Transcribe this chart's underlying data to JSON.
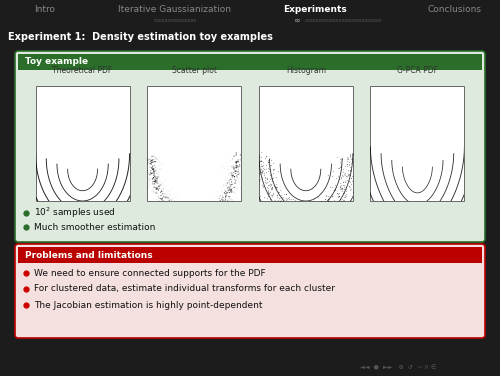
{
  "bg_color": "#1c1c1c",
  "header_bg": "#0a0a0a",
  "nav_items": [
    "Intro",
    "Iterative Gaussianization",
    "Experiments",
    "Conclusions"
  ],
  "nav_active": 2,
  "section_bar_color": "#3030a0",
  "section_title": "Experiment 1:  Density estimation toy examples",
  "section_title_color": "#ffffff",
  "toy_box_bg": "#deeade",
  "toy_box_border": "#2a6e2a",
  "toy_title": "Toy example",
  "toy_title_bg": "#2a6e2a",
  "toy_title_color": "#ffffff",
  "plot_titles": [
    "Theoretical PDF",
    "Scatter plot",
    "Histogram",
    "G-PCA PDF"
  ],
  "bullet_color_toy": "#2a6e2a",
  "toy_bullets": [
    "$10^2$ samples used",
    "Much smoother estimation"
  ],
  "prob_box_bg": "#f5e0e0",
  "prob_box_border": "#bb0000",
  "prob_title": "Problems and limitations",
  "prob_title_bg": "#bb0000",
  "prob_title_color": "#ffffff",
  "bullet_color_prob": "#cc0000",
  "prob_bullets": [
    "We need to ensure connected supports for the PDF",
    "For clustered data, estimate individual transforms for each cluster",
    "The Jacobian estimation is highly point-dependent"
  ],
  "nav_color_normal": "#888888",
  "nav_color_active": "#ffffff"
}
